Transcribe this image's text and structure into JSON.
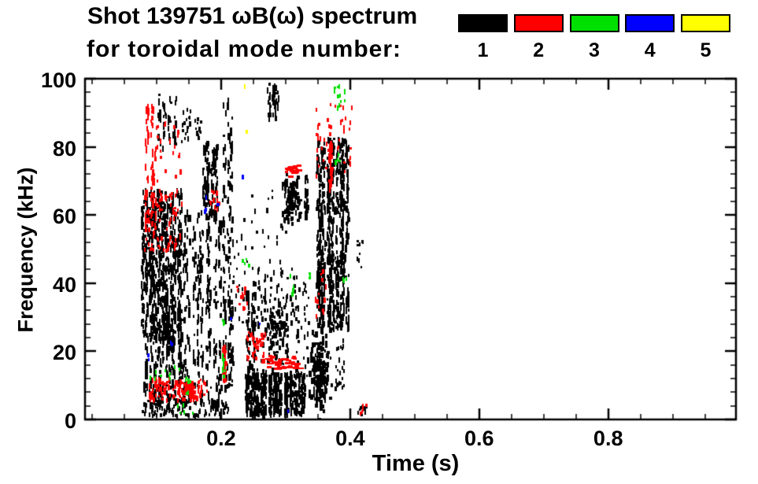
{
  "chart": {
    "title_line1": "Shot 139751 ωB(ω) spectrum",
    "title_line2": "for toroidal mode number:"
  },
  "legend": {
    "items": [
      {
        "label": "1",
        "color": "#000000"
      },
      {
        "label": "2",
        "color": "#ff0000"
      },
      {
        "label": "3",
        "color": "#00e000"
      },
      {
        "label": "4",
        "color": "#0000ff"
      },
      {
        "label": "5",
        "color": "#ffff00"
      }
    ]
  },
  "chart_data": {
    "type": "scatter",
    "title": "Shot 139751 ωB(ω) spectrum for toroidal mode number: 1 2 3 4 5",
    "title_line1": "Shot 139751 ωB(ω) spectrum",
    "title_line2": "for toroidal mode number:",
    "xlabel": "Time (s)",
    "ylabel": "Frequency (kHz)",
    "xlim": [
      -0.011,
      0.998
    ],
    "ylim": [
      0,
      100
    ],
    "x_major_ticks": [
      0.2,
      0.4,
      0.6,
      0.8
    ],
    "x_minor_step": 0.05,
    "y_major_ticks": [
      0,
      20,
      40,
      60,
      80,
      100
    ],
    "y_minor_step": 4,
    "grid": false,
    "ticks": "inward-mirrored",
    "legend_position": "top-right-above-plot",
    "series": [
      {
        "name": "1",
        "color": "#000000",
        "clusters": [
          {
            "type": "columns",
            "t": [
              0.077,
              0.138
            ],
            "f": [
              24,
              68
            ],
            "cols": 14,
            "n": 700
          },
          {
            "type": "columns",
            "t": [
              0.08,
              0.142
            ],
            "f": [
              4,
              26
            ],
            "cols": 10,
            "n": 200
          },
          {
            "type": "columns",
            "t": [
              0.1,
              0.13
            ],
            "f": [
              80,
              97
            ],
            "cols": 4,
            "n": 45
          },
          {
            "type": "scatter",
            "t": [
              0.138,
              0.152
            ],
            "f": [
              82,
              93
            ],
            "n": 18
          },
          {
            "type": "scatter",
            "t": [
              0.155,
              0.168
            ],
            "f": [
              83,
              90
            ],
            "n": 12
          },
          {
            "type": "columns",
            "t": [
              0.14,
              0.2
            ],
            "f": [
              4,
              62
            ],
            "cols": 9,
            "n": 300
          },
          {
            "type": "columns",
            "t": [
              0.17,
              0.193
            ],
            "f": [
              60,
              82
            ],
            "cols": 4,
            "n": 110
          },
          {
            "type": "columns",
            "t": [
              0.203,
              0.218
            ],
            "f": [
              10,
              95
            ],
            "cols": 3,
            "n": 140
          },
          {
            "type": "scatter",
            "t": [
              0.21,
              0.24
            ],
            "f": [
              25,
              62
            ],
            "n": 28
          },
          {
            "type": "columns",
            "t": [
              0.268,
              0.29
            ],
            "f": [
              89,
              100
            ],
            "cols": 3,
            "n": 40
          },
          {
            "type": "blob",
            "t": [
              0.296,
              0.318
            ],
            "f": [
              59,
              71
            ],
            "n": 100
          },
          {
            "type": "columns",
            "t": [
              0.328,
              0.334
            ],
            "f": [
              60,
              72
            ],
            "cols": 1,
            "n": 26
          },
          {
            "type": "columns",
            "t": [
              0.345,
              0.397
            ],
            "f": [
              27,
              83
            ],
            "cols": 10,
            "n": 680
          },
          {
            "type": "blob",
            "t": [
              0.338,
              0.365
            ],
            "f": [
              5,
              24
            ],
            "n": 170
          },
          {
            "type": "columns",
            "t": [
              0.235,
              0.33
            ],
            "f": [
              2,
              14
            ],
            "cols": 16,
            "n": 460
          },
          {
            "type": "columns",
            "t": [
              0.238,
              0.25
            ],
            "f": [
              10,
              38
            ],
            "cols": 2,
            "n": 70
          },
          {
            "type": "scatter",
            "t": [
              0.24,
              0.335
            ],
            "f": [
              13,
              46
            ],
            "n": 150
          },
          {
            "type": "blob",
            "t": [
              0.27,
              0.3
            ],
            "f": [
              20,
              34
            ],
            "n": 70
          },
          {
            "type": "scatter",
            "t": [
              0.245,
              0.3
            ],
            "f": [
              30,
              68
            ],
            "n": 30
          },
          {
            "type": "scatter",
            "t": [
              0.075,
              0.21
            ],
            "f": [
              1.5,
              6
            ],
            "n": 95
          },
          {
            "type": "scatter",
            "t": [
              0.375,
              0.392
            ],
            "f": [
              9,
              24
            ],
            "n": 22
          },
          {
            "type": "scatter",
            "t": [
              0.405,
              0.425
            ],
            "f": [
              2,
              5
            ],
            "n": 8
          },
          {
            "type": "scatter",
            "t": [
              0.405,
              0.42
            ],
            "f": [
              45,
              53
            ],
            "n": 9
          }
        ]
      },
      {
        "name": "2",
        "color": "#ff0000",
        "clusters": [
          {
            "type": "columns",
            "t": [
              0.082,
              0.094
            ],
            "f": [
              58,
              93
            ],
            "cols": 2,
            "n": 60
          },
          {
            "type": "scatter",
            "t": [
              0.08,
              0.138
            ],
            "f": [
              50,
              68
            ],
            "n": 75
          },
          {
            "type": "scatter",
            "t": [
              0.095,
              0.138
            ],
            "f": [
              70,
              88
            ],
            "n": 26
          },
          {
            "type": "scatter",
            "t": [
              0.085,
              0.178
            ],
            "f": [
              6,
              12.5
            ],
            "n": 110
          },
          {
            "type": "blob",
            "t": [
              0.143,
              0.158
            ],
            "f": [
              8,
              11
            ],
            "n": 45
          },
          {
            "type": "columns",
            "t": [
              0.198,
              0.206
            ],
            "f": [
              12,
              22
            ],
            "cols": 1,
            "n": 30
          },
          {
            "type": "scatter",
            "t": [
              0.18,
              0.197
            ],
            "f": [
              62,
              68
            ],
            "n": 14
          },
          {
            "type": "scatter",
            "t": [
              0.222,
              0.24
            ],
            "f": [
              33,
              40
            ],
            "n": 12
          },
          {
            "type": "scatter",
            "t": [
              0.238,
              0.268
            ],
            "f": [
              17,
              26
            ],
            "n": 40
          },
          {
            "type": "hdash",
            "t": [
              0.265,
              0.318
            ],
            "f": [
              15,
              19
            ],
            "n": 40
          },
          {
            "type": "hdash",
            "t": [
              0.298,
              0.318
            ],
            "f": [
              71,
              75
            ],
            "n": 16
          },
          {
            "type": "columns",
            "t": [
              0.364,
              0.371
            ],
            "f": [
              68,
              82
            ],
            "cols": 1,
            "n": 35
          },
          {
            "type": "scatter",
            "t": [
              0.345,
              0.402
            ],
            "f": [
              72,
              93
            ],
            "n": 42
          },
          {
            "type": "scatter",
            "t": [
              0.345,
              0.362
            ],
            "f": [
              30,
              45
            ],
            "n": 14
          },
          {
            "type": "scatter",
            "t": [
              0.405,
              0.425
            ],
            "f": [
              2,
              6
            ],
            "n": 6
          }
        ]
      },
      {
        "name": "3",
        "color": "#00e000",
        "clusters": [
          {
            "type": "scatter",
            "t": [
              0.088,
              0.135
            ],
            "f": [
              12,
              16
            ],
            "n": 10
          },
          {
            "type": "scatter",
            "t": [
              0.128,
              0.162
            ],
            "f": [
              2,
              5
            ],
            "n": 6
          },
          {
            "type": "scatter",
            "t": [
              0.144,
              0.152
            ],
            "f": [
              8,
              15
            ],
            "n": 6
          },
          {
            "type": "columns",
            "t": [
              0.2,
              0.206
            ],
            "f": [
              13,
              21
            ],
            "cols": 1,
            "n": 10
          },
          {
            "type": "scatter",
            "t": [
              0.198,
              0.204
            ],
            "f": [
              27,
              30
            ],
            "n": 3
          },
          {
            "type": "scatter",
            "t": [
              0.232,
              0.242
            ],
            "f": [
              45,
              49
            ],
            "n": 5
          },
          {
            "type": "scatter",
            "t": [
              0.3,
              0.34
            ],
            "f": [
              37,
              44
            ],
            "n": 7
          },
          {
            "type": "scatter",
            "t": [
              0.374,
              0.393
            ],
            "f": [
              92,
              99
            ],
            "n": 12
          },
          {
            "type": "scatter",
            "t": [
              0.376,
              0.382
            ],
            "f": [
              76,
              80
            ],
            "n": 4
          },
          {
            "type": "scatter",
            "t": [
              0.387,
              0.393
            ],
            "f": [
              41,
              44
            ],
            "n": 3
          }
        ]
      },
      {
        "name": "4",
        "color": "#0000ff",
        "clusters": [
          {
            "type": "scatter",
            "t": [
              0.085,
              0.088
            ],
            "f": [
              18,
              19.5
            ],
            "n": 2
          },
          {
            "type": "scatter",
            "t": [
              0.12,
              0.123
            ],
            "f": [
              22,
              23.5
            ],
            "n": 2
          },
          {
            "type": "scatter",
            "t": [
              0.171,
              0.177
            ],
            "f": [
              61,
              66
            ],
            "n": 4
          },
          {
            "type": "scatter",
            "t": [
              0.193,
              0.196
            ],
            "f": [
              63,
              65
            ],
            "n": 2
          },
          {
            "type": "scatter",
            "t": [
              0.212,
              0.215
            ],
            "f": [
              28,
              30
            ],
            "n": 1
          },
          {
            "type": "scatter",
            "t": [
              0.231,
              0.234
            ],
            "f": [
              71,
              73
            ],
            "n": 1
          },
          {
            "type": "scatter",
            "t": [
              0.256,
              0.259
            ],
            "f": [
              28,
              30
            ],
            "n": 1
          },
          {
            "type": "scatter",
            "t": [
              0.3,
              0.304
            ],
            "f": [
              3,
              5
            ],
            "n": 1
          }
        ]
      },
      {
        "name": "5",
        "color": "#ffff00",
        "clusters": [
          {
            "type": "scatter",
            "t": [
              0.232,
              0.235
            ],
            "f": [
              96.5,
              98.5
            ],
            "n": 1
          },
          {
            "type": "scatter",
            "t": [
              0.237,
              0.24
            ],
            "f": [
              83.5,
              85.5
            ],
            "n": 1
          }
        ]
      }
    ]
  }
}
